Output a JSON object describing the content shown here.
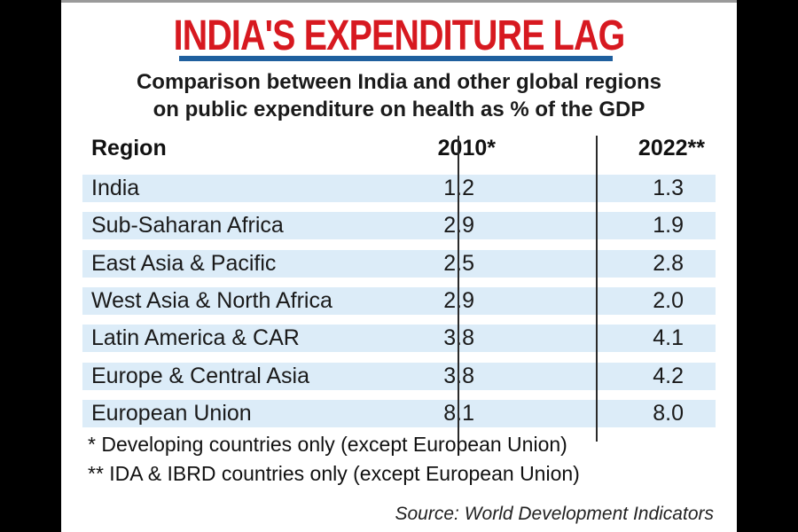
{
  "chart_data": {
    "type": "table",
    "title": "INDIA'S EXPENDITURE LAG",
    "subtitle_lines": [
      "Comparison between India and other global regions",
      "on public expenditure on health as % of the GDP"
    ],
    "columns": [
      "Region",
      "2010*",
      "2022**"
    ],
    "rows": [
      {
        "region": "India",
        "y2010": "1.2",
        "y2022": "1.3"
      },
      {
        "region": "Sub-Saharan Africa",
        "y2010": "2.9",
        "y2022": "1.9"
      },
      {
        "region": "East Asia & Pacific",
        "y2010": "2.5",
        "y2022": "2.8"
      },
      {
        "region": "West Asia & North Africa",
        "y2010": "2.9",
        "y2022": "2.0"
      },
      {
        "region": "Latin America & CAR",
        "y2010": "3.8",
        "y2022": "4.1"
      },
      {
        "region": "Europe & Central Asia",
        "y2010": "3.8",
        "y2022": "4.2"
      },
      {
        "region": "European Union",
        "y2010": "8.1",
        "y2022": "8.0"
      }
    ],
    "footnotes": [
      "* Developing countries only (except European Union)",
      "** IDA & IBRD countries only (except European Union)"
    ],
    "source": "Source: World Development Indicators"
  },
  "colors": {
    "title": "#d71920",
    "rule": "#1f5f9e",
    "row_fill": "#dcecf8"
  }
}
